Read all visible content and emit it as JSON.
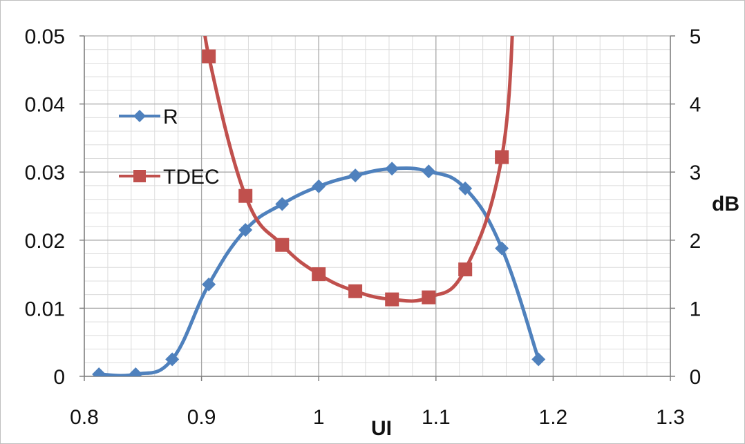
{
  "chart_data": {
    "type": "line",
    "title": "",
    "xlabel": "UI",
    "ylabel_left": "",
    "ylabel_right": "dB",
    "xlim": [
      0.8,
      1.3
    ],
    "ylim_left": [
      0,
      0.05
    ],
    "ylim_right": [
      0,
      5
    ],
    "x_ticks": [
      "0.8",
      "0.9",
      "1",
      "1.1",
      "1.2",
      "1.3"
    ],
    "y_left_ticks": [
      "0",
      "0.01",
      "0.02",
      "0.03",
      "0.04",
      "0.05"
    ],
    "y_right_ticks": [
      "0",
      "1",
      "2",
      "3",
      "4",
      "5"
    ],
    "grid": true,
    "legend_position": "upper-left inside plot",
    "series": [
      {
        "name": "R",
        "axis": "left",
        "color": "#4f81bd",
        "marker": "diamond",
        "x": [
          0.8125,
          0.8438,
          0.875,
          0.9062,
          0.9375,
          0.9688,
          1.0,
          1.0312,
          1.0625,
          1.0938,
          1.125,
          1.1562,
          1.1875
        ],
        "y": [
          0.0003,
          0.0003,
          0.0025,
          0.0135,
          0.0215,
          0.0253,
          0.0279,
          0.0295,
          0.0305,
          0.0301,
          0.0276,
          0.0188,
          0.0025
        ]
      },
      {
        "name": "TDEC",
        "axis": "right",
        "color": "#c0504d",
        "marker": "square",
        "x": [
          0.9062,
          0.9375,
          0.9688,
          1.0,
          1.0312,
          1.0625,
          1.0938,
          1.125,
          1.1562
        ],
        "y": [
          4.7,
          2.65,
          1.93,
          1.5,
          1.25,
          1.13,
          1.16,
          1.57,
          3.22
        ],
        "extends_beyond_top": true
      }
    ]
  }
}
